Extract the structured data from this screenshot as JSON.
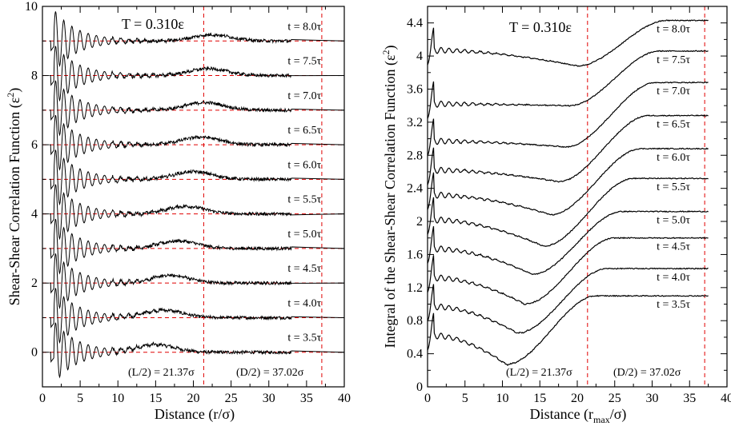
{
  "chart_data": [
    {
      "type": "line",
      "panel": "left",
      "title": "T = 0.310ε",
      "xlabel": "Distance  (r/σ)",
      "ylabel": "Shear-Shear  Correlation  Function  (ε²)",
      "xlim": [
        0,
        40
      ],
      "ylim": [
        -1,
        10
      ],
      "xticks": [
        0,
        5,
        10,
        15,
        20,
        25,
        30,
        35,
        40
      ],
      "yticks": [
        0,
        2,
        4,
        6,
        8,
        10
      ],
      "reference_lines_x": [
        21.37,
        37.02
      ],
      "annotations": [
        "(L/2) = 21.37σ",
        "(D/2) = 37.02σ"
      ],
      "series": [
        {
          "name": "t = 3.5τ",
          "offset": 0,
          "hump_center": 15,
          "hump_height": 0.22
        },
        {
          "name": "t = 4.0τ",
          "offset": 1,
          "hump_center": 16,
          "hump_height": 0.22
        },
        {
          "name": "t = 4.5τ",
          "offset": 2,
          "hump_center": 17,
          "hump_height": 0.22
        },
        {
          "name": "t = 5.0τ",
          "offset": 3,
          "hump_center": 18,
          "hump_height": 0.22
        },
        {
          "name": "t = 5.5τ",
          "offset": 4,
          "hump_center": 19,
          "hump_height": 0.22
        },
        {
          "name": "t = 6.0τ",
          "offset": 5,
          "hump_center": 20,
          "hump_height": 0.22
        },
        {
          "name": "t = 6.5τ",
          "offset": 6,
          "hump_center": 21,
          "hump_height": 0.22
        },
        {
          "name": "t = 7.0τ",
          "offset": 7,
          "hump_center": 21.5,
          "hump_height": 0.22
        },
        {
          "name": "t = 7.5τ",
          "offset": 8,
          "hump_center": 22,
          "hump_height": 0.2
        },
        {
          "name": "t = 8.0τ",
          "offset": 9,
          "hump_center": 22.5,
          "hump_height": 0.18
        }
      ]
    },
    {
      "type": "line",
      "panel": "right",
      "title": "T = 0.310ε",
      "xlabel": "Distance  (r_max/σ)",
      "ylabel": "Integral of the Shear-Shear Correlation Function (ε²)",
      "xlim": [
        0,
        40
      ],
      "ylim": [
        0,
        4.6
      ],
      "xticks": [
        0,
        5,
        10,
        15,
        20,
        25,
        30,
        35,
        40
      ],
      "yticks": [
        0,
        0.4,
        0.8,
        1.2,
        1.6,
        2,
        2.4,
        2.8,
        3.2,
        3.6,
        4,
        4.4
      ],
      "reference_lines_x": [
        21.37,
        37.02
      ],
      "annotations": [
        "(L/2) = 21.37σ",
        "(D/2) = 37.02σ"
      ],
      "series": [
        {
          "name": "t = 3.5τ",
          "start": 0.6,
          "min_x": 10.5,
          "min_y": 0.27,
          "plateau": 1.1
        },
        {
          "name": "t = 4.0τ",
          "start": 0.95,
          "min_x": 12,
          "min_y": 0.65,
          "plateau": 1.43
        },
        {
          "name": "t = 4.5τ",
          "start": 1.3,
          "min_x": 13,
          "min_y": 1.0,
          "plateau": 1.8
        },
        {
          "name": "t = 5.0τ",
          "start": 1.65,
          "min_x": 14,
          "min_y": 1.36,
          "plateau": 2.12
        },
        {
          "name": "t = 5.5τ",
          "start": 2.0,
          "min_x": 15.5,
          "min_y": 1.7,
          "plateau": 2.52
        },
        {
          "name": "t = 6.0τ",
          "start": 2.3,
          "min_x": 16.5,
          "min_y": 2.08,
          "plateau": 2.88
        },
        {
          "name": "t = 6.5τ",
          "start": 2.6,
          "min_x": 17.5,
          "min_y": 2.48,
          "plateau": 3.28
        },
        {
          "name": "t = 7.0τ",
          "start": 2.95,
          "min_x": 18.5,
          "min_y": 2.9,
          "plateau": 3.68
        },
        {
          "name": "t = 7.5τ",
          "start": 3.4,
          "min_x": 19,
          "min_y": 3.4,
          "plateau": 4.06
        },
        {
          "name": "t = 8.0τ",
          "start": 4.05,
          "min_x": 20,
          "min_y": 3.88,
          "plateau": 4.43
        }
      ]
    }
  ]
}
